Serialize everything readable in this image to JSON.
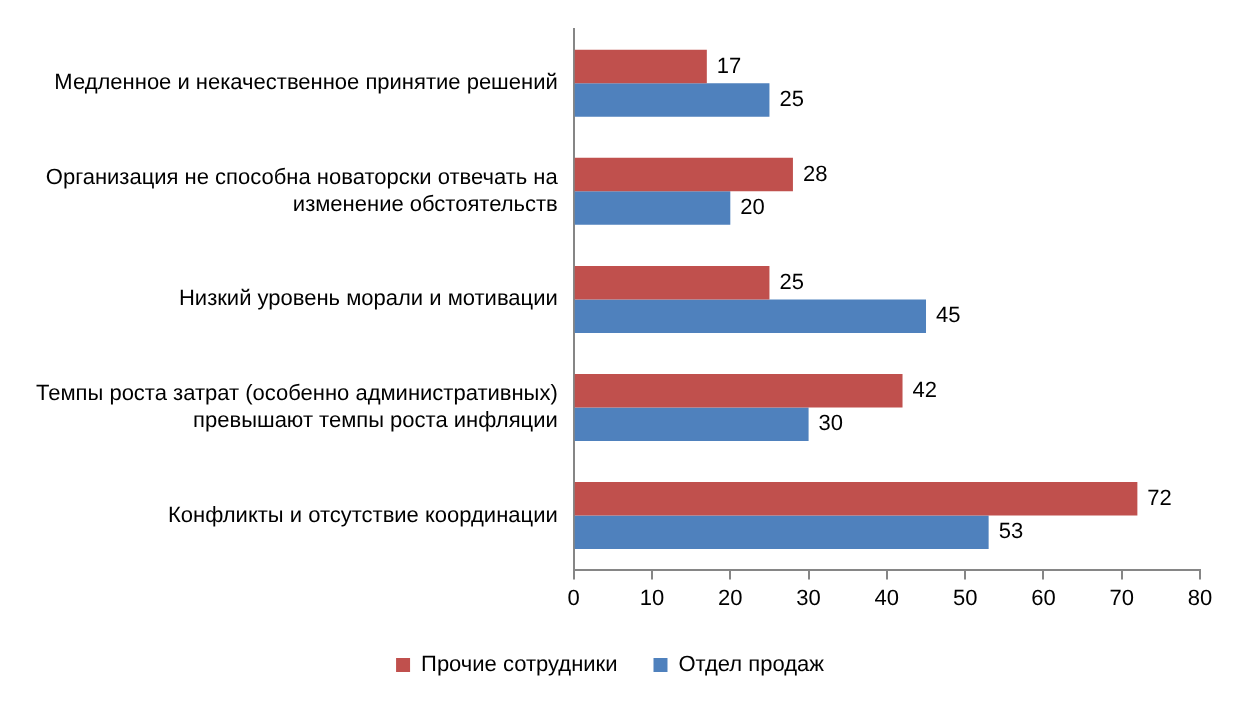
{
  "chart_data": {
    "type": "bar",
    "orientation": "horizontal",
    "categories": [
      "Медленное и некачественное принятие решений",
      "Организация не способна новаторски отвечать на изменение обстоятельств",
      "Низкий уровень морали и мотивации",
      "Темпы роста затрат (особенно административных) превышают темпы роста инфляции",
      "Конфликты и отсутствие координации"
    ],
    "series": [
      {
        "name": "Прочие сотрудники",
        "color": "#c0504d",
        "values": [
          17,
          28,
          25,
          42,
          72
        ]
      },
      {
        "name": "Отдел продаж",
        "color": "#4f81bd",
        "values": [
          25,
          20,
          45,
          30,
          53
        ]
      }
    ],
    "xlim": [
      0,
      80
    ],
    "xticks": [
      0,
      10,
      20,
      30,
      40,
      50,
      60,
      70,
      80
    ],
    "grid": false,
    "legend": "bottom",
    "data_labels": true
  }
}
